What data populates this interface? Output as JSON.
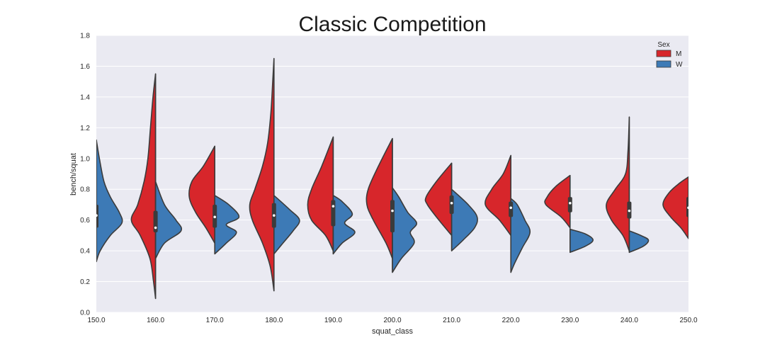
{
  "chart_data": {
    "type": "violin",
    "title": "Classic Competition",
    "xlabel": "squat_class",
    "ylabel": "bench/squat",
    "categories": [
      "150.0",
      "160.0",
      "170.0",
      "180.0",
      "190.0",
      "200.0",
      "210.0",
      "220.0",
      "230.0",
      "240.0",
      "250.0"
    ],
    "ylim": [
      0.0,
      1.8
    ],
    "yticks": [
      "0.0",
      "0.2",
      "0.4",
      "0.6",
      "0.8",
      "1.0",
      "1.2",
      "1.4",
      "1.6",
      "1.8"
    ],
    "grid": true,
    "legend": {
      "title": "Sex",
      "placement": "top-right"
    },
    "colors": {
      "M": "#d7262b",
      "W": "#3d7ab6",
      "background": "#eaeaf2",
      "grid": "#ffffff",
      "outline": "#3b3b3b"
    },
    "series": [
      {
        "name": "M",
        "side": "left",
        "violins": [
          null,
          {
            "profile": [
              [
                0.09,
                0.0
              ],
              [
                0.2,
                0.08
              ],
              [
                0.35,
                0.22
              ],
              [
                0.5,
                0.6
              ],
              [
                0.6,
                0.95
              ],
              [
                0.7,
                0.7
              ],
              [
                0.85,
                0.45
              ],
              [
                1.0,
                0.3
              ],
              [
                1.2,
                0.2
              ],
              [
                1.4,
                0.1
              ],
              [
                1.55,
                0.0
              ]
            ],
            "q1": 0.52,
            "median": 0.55,
            "q3": 0.66
          },
          {
            "profile": [
              [
                0.45,
                0.0
              ],
              [
                0.55,
                0.35
              ],
              [
                0.65,
                0.75
              ],
              [
                0.75,
                1.0
              ],
              [
                0.85,
                0.9
              ],
              [
                0.95,
                0.45
              ],
              [
                1.08,
                0.0
              ]
            ],
            "q1": 0.55,
            "median": 0.62,
            "q3": 0.7
          },
          {
            "profile": [
              [
                0.14,
                0.0
              ],
              [
                0.3,
                0.15
              ],
              [
                0.45,
                0.45
              ],
              [
                0.6,
                0.85
              ],
              [
                0.7,
                0.95
              ],
              [
                0.8,
                0.75
              ],
              [
                0.95,
                0.45
              ],
              [
                1.1,
                0.25
              ],
              [
                1.3,
                0.12
              ],
              [
                1.5,
                0.05
              ],
              [
                1.65,
                0.0
              ]
            ],
            "q1": 0.55,
            "median": 0.63,
            "q3": 0.71
          },
          {
            "profile": [
              [
                0.4,
                0.0
              ],
              [
                0.5,
                0.3
              ],
              [
                0.6,
                0.85
              ],
              [
                0.7,
                1.0
              ],
              [
                0.8,
                0.85
              ],
              [
                0.95,
                0.45
              ],
              [
                1.14,
                0.0
              ]
            ],
            "q1": 0.56,
            "median": 0.69,
            "q3": 0.73
          },
          {
            "profile": [
              [
                0.35,
                0.0
              ],
              [
                0.45,
                0.25
              ],
              [
                0.6,
                0.75
              ],
              [
                0.7,
                1.0
              ],
              [
                0.8,
                0.95
              ],
              [
                0.95,
                0.55
              ],
              [
                1.13,
                0.0
              ]
            ],
            "q1": 0.52,
            "median": 0.66,
            "q3": 0.73
          },
          {
            "profile": [
              [
                0.5,
                0.0
              ],
              [
                0.6,
                0.5
              ],
              [
                0.7,
                0.95
              ],
              [
                0.75,
                1.0
              ],
              [
                0.85,
                0.6
              ],
              [
                0.97,
                0.0
              ]
            ],
            "q1": 0.64,
            "median": 0.71,
            "q3": 0.76
          },
          {
            "profile": [
              [
                0.5,
                0.0
              ],
              [
                0.6,
                0.45
              ],
              [
                0.7,
                1.0
              ],
              [
                0.8,
                0.75
              ],
              [
                0.9,
                0.3
              ],
              [
                1.02,
                0.0
              ]
            ],
            "q1": 0.62,
            "median": 0.68,
            "q3": 0.72
          },
          {
            "profile": [
              [
                0.55,
                0.0
              ],
              [
                0.62,
                0.35
              ],
              [
                0.7,
                0.95
              ],
              [
                0.75,
                0.9
              ],
              [
                0.82,
                0.55
              ],
              [
                0.89,
                0.0
              ]
            ],
            "q1": 0.65,
            "median": 0.71,
            "q3": 0.75
          },
          {
            "profile": [
              [
                0.4,
                0.0
              ],
              [
                0.5,
                0.25
              ],
              [
                0.6,
                0.7
              ],
              [
                0.7,
                0.9
              ],
              [
                0.8,
                0.55
              ],
              [
                0.9,
                0.15
              ],
              [
                1.05,
                0.05
              ],
              [
                1.27,
                0.0
              ]
            ],
            "q1": 0.61,
            "median": 0.66,
            "q3": 0.72
          },
          {
            "profile": [
              [
                0.48,
                0.0
              ],
              [
                0.55,
                0.3
              ],
              [
                0.62,
                0.7
              ],
              [
                0.7,
                1.0
              ],
              [
                0.78,
                0.75
              ],
              [
                0.84,
                0.35
              ],
              [
                0.88,
                0.0
              ]
            ],
            "q1": 0.62,
            "median": 0.68,
            "q3": 0.75
          }
        ]
      },
      {
        "name": "W",
        "side": "right",
        "violins": [
          {
            "profile": [
              [
                0.33,
                0.0
              ],
              [
                0.4,
                0.15
              ],
              [
                0.5,
                0.55
              ],
              [
                0.58,
                1.0
              ],
              [
                0.65,
                0.9
              ],
              [
                0.75,
                0.55
              ],
              [
                0.85,
                0.3
              ],
              [
                1.0,
                0.12
              ],
              [
                1.12,
                0.0
              ]
            ],
            "q1": 0.55,
            "median": 0.63,
            "q3": 0.7
          },
          {
            "profile": [
              [
                0.35,
                0.0
              ],
              [
                0.45,
                0.35
              ],
              [
                0.53,
                1.0
              ],
              [
                0.6,
                0.8
              ],
              [
                0.7,
                0.35
              ],
              [
                0.85,
                0.0
              ]
            ],
            "q1": 0.52,
            "median": 0.55,
            "q3": 0.66
          },
          {
            "profile": [
              [
                0.38,
                0.0
              ],
              [
                0.45,
                0.45
              ],
              [
                0.52,
                0.85
              ],
              [
                0.57,
                0.45
              ],
              [
                0.62,
                0.95
              ],
              [
                0.7,
                0.55
              ],
              [
                0.76,
                0.0
              ]
            ],
            "q1": 0.55,
            "median": 0.62,
            "q3": 0.7
          },
          {
            "profile": [
              [
                0.38,
                0.0
              ],
              [
                0.45,
                0.35
              ],
              [
                0.53,
                0.75
              ],
              [
                0.6,
                1.0
              ],
              [
                0.67,
                0.6
              ],
              [
                0.76,
                0.0
              ]
            ],
            "q1": 0.55,
            "median": 0.63,
            "q3": 0.71
          },
          {
            "profile": [
              [
                0.38,
                0.0
              ],
              [
                0.45,
                0.35
              ],
              [
                0.52,
                0.85
              ],
              [
                0.58,
                0.45
              ],
              [
                0.64,
                0.75
              ],
              [
                0.72,
                0.35
              ],
              [
                0.76,
                0.0
              ]
            ],
            "q1": 0.56,
            "median": 0.69,
            "q3": 0.73
          },
          {
            "profile": [
              [
                0.26,
                0.0
              ],
              [
                0.35,
                0.35
              ],
              [
                0.45,
                0.85
              ],
              [
                0.52,
                0.7
              ],
              [
                0.58,
                0.95
              ],
              [
                0.65,
                0.6
              ],
              [
                0.75,
                0.25
              ],
              [
                0.81,
                0.0
              ]
            ],
            "q1": 0.52,
            "median": 0.66,
            "q3": 0.73
          },
          {
            "profile": [
              [
                0.4,
                0.0
              ],
              [
                0.47,
                0.45
              ],
              [
                0.55,
                0.9
              ],
              [
                0.62,
                1.0
              ],
              [
                0.7,
                0.65
              ],
              [
                0.8,
                0.0
              ]
            ],
            "q1": 0.64,
            "median": 0.71,
            "q3": 0.76
          },
          {
            "profile": [
              [
                0.26,
                0.0
              ],
              [
                0.32,
                0.15
              ],
              [
                0.42,
                0.45
              ],
              [
                0.52,
                0.75
              ],
              [
                0.6,
                0.55
              ],
              [
                0.7,
                0.25
              ],
              [
                0.74,
                0.0
              ]
            ],
            "q1": 0.62,
            "median": 0.68,
            "q3": 0.72
          },
          {
            "profile": [
              [
                0.39,
                0.0
              ],
              [
                0.43,
                0.6
              ],
              [
                0.47,
                0.9
              ],
              [
                0.51,
                0.6
              ],
              [
                0.54,
                0.0
              ]
            ],
            "q1": 0.65,
            "median": 0.71,
            "q3": 0.75
          },
          {
            "profile": [
              [
                0.39,
                0.0
              ],
              [
                0.43,
                0.55
              ],
              [
                0.47,
                0.75
              ],
              [
                0.5,
                0.45
              ],
              [
                0.53,
                0.0
              ]
            ],
            "q1": 0.61,
            "median": 0.66,
            "q3": 0.72
          },
          null
        ]
      }
    ]
  }
}
